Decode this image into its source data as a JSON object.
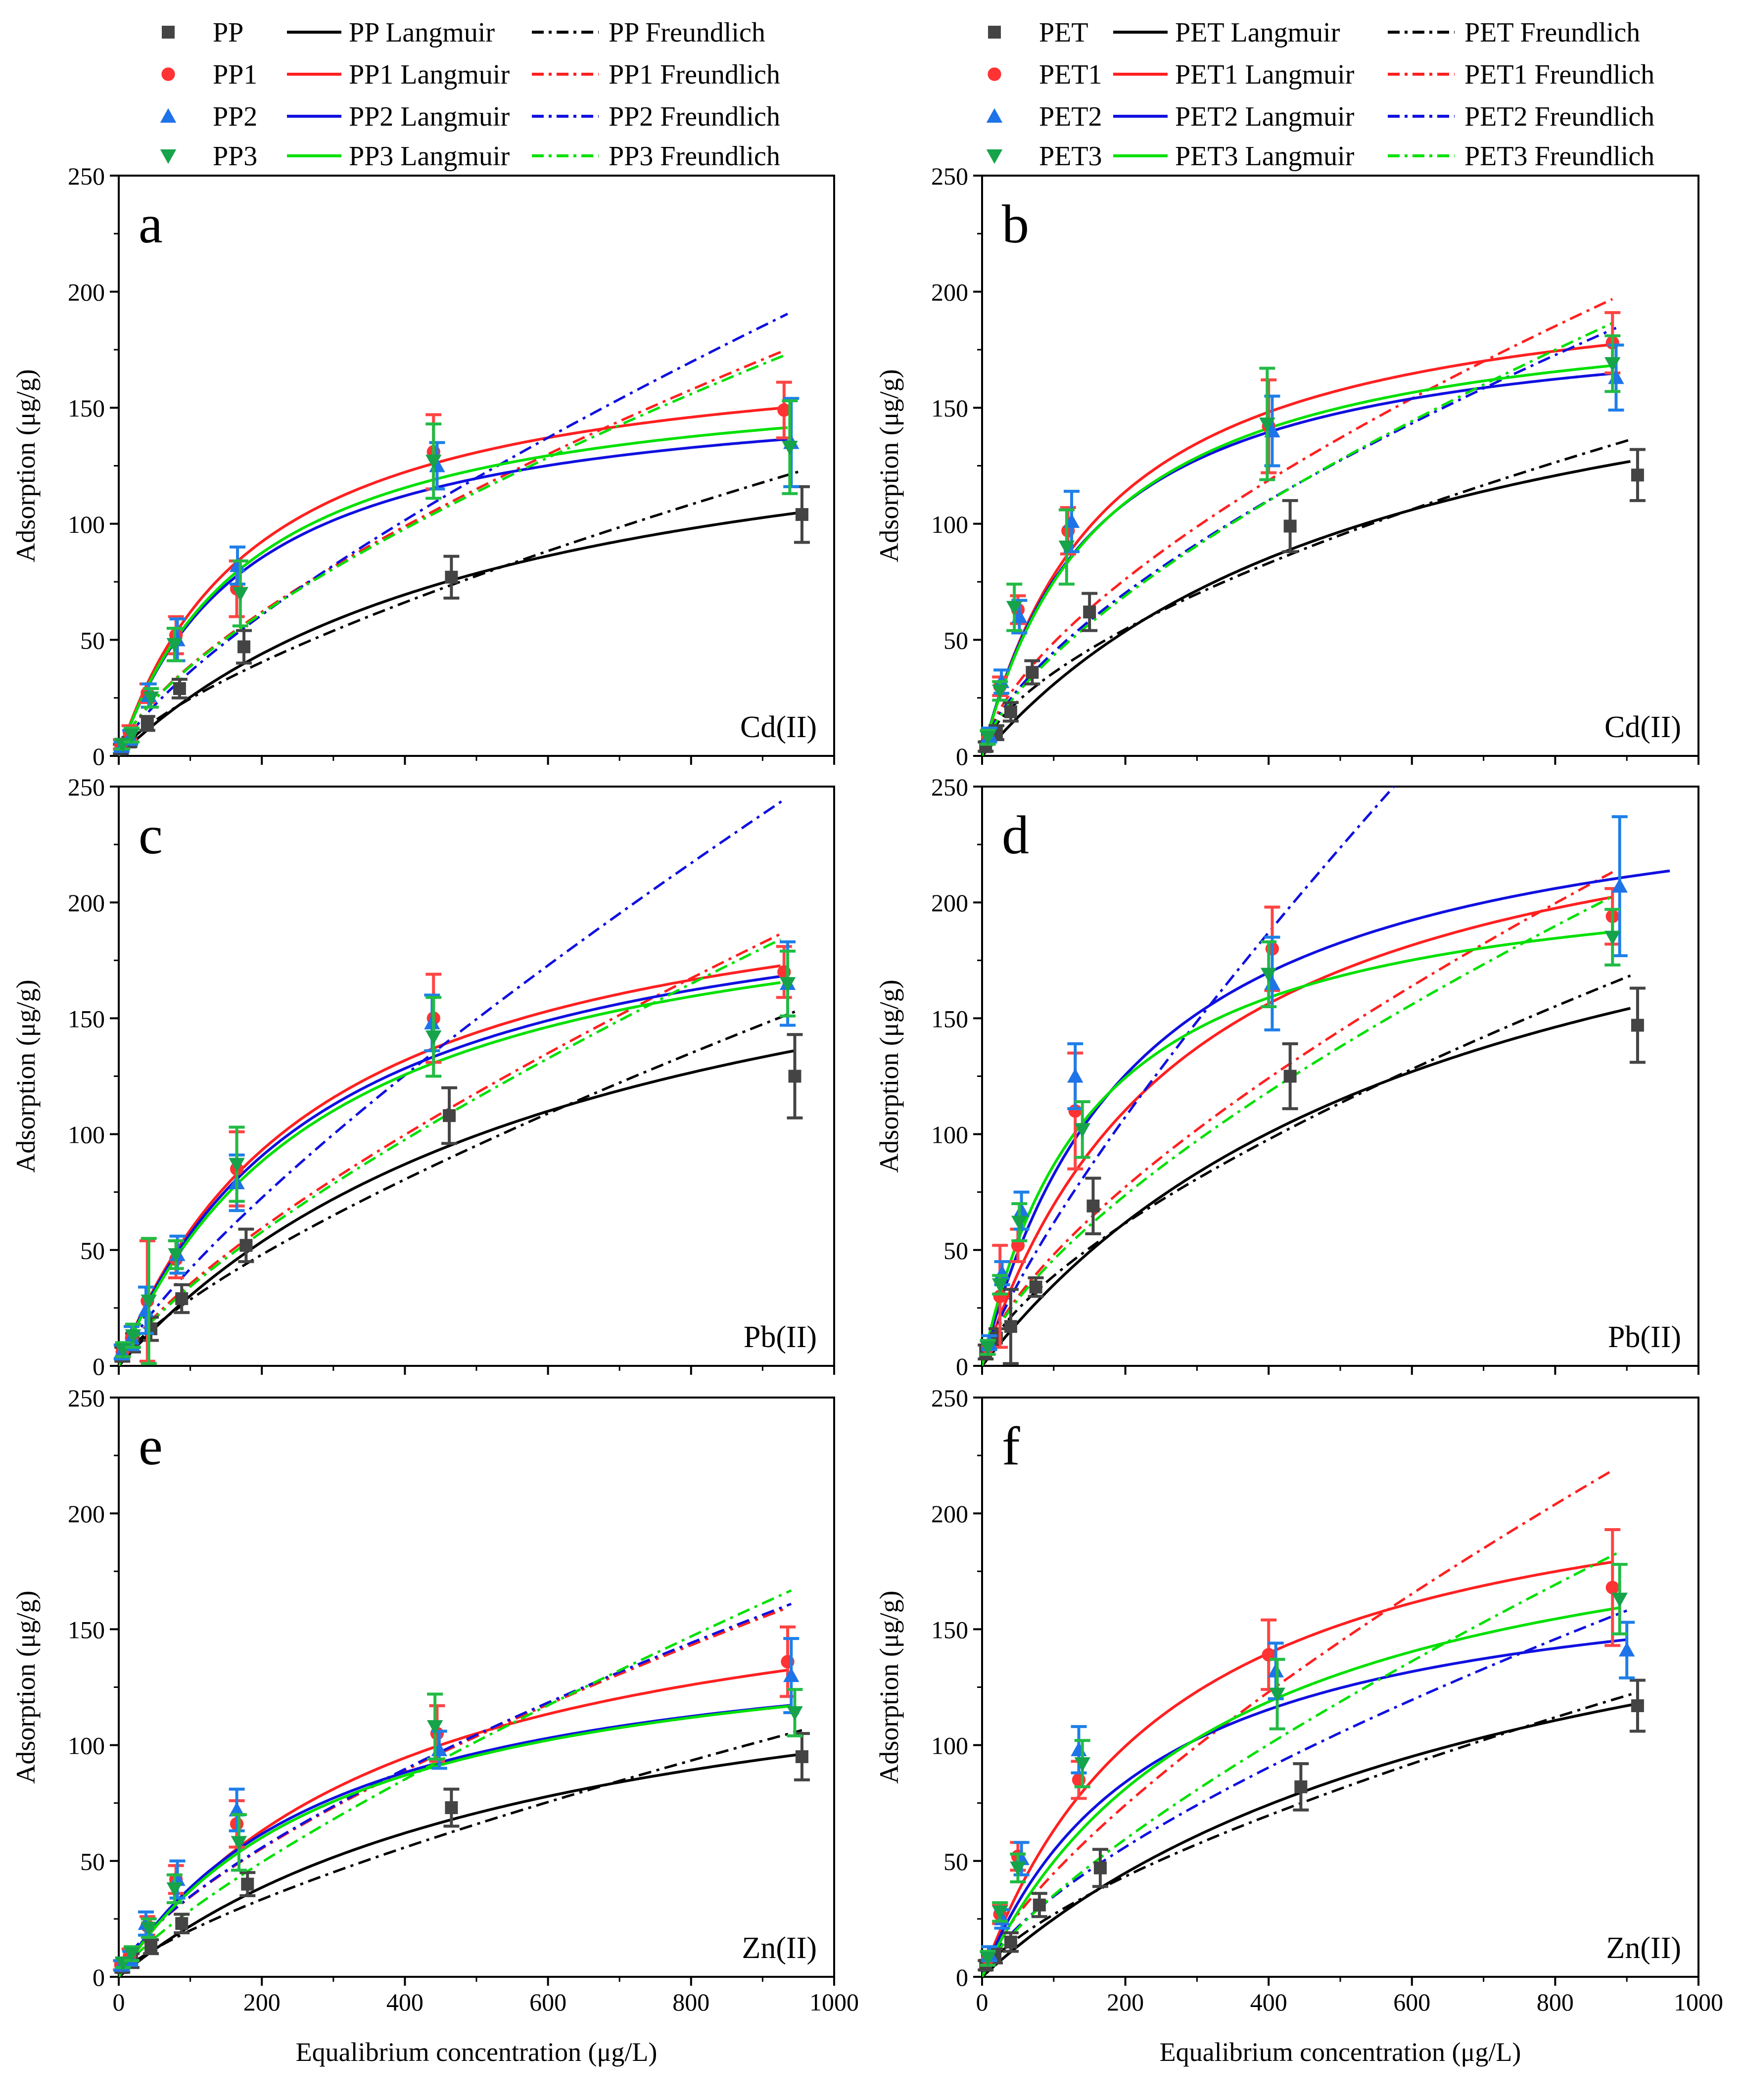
{
  "figure": {
    "x_axis_label": "Equalibrium concentration (μg/L)",
    "y_axis_label": "Adsorption (μg/g)"
  },
  "legends": {
    "pp": {
      "items": [
        {
          "marker": "square",
          "color": "#444444",
          "label": "PP",
          "lang_label": "PP Langmuir",
          "freund_label": "PP Freundlich"
        },
        {
          "marker": "circle",
          "color": "#ff3333",
          "label": "PP1",
          "lang_label": "PP1 Langmuir",
          "freund_label": "PP1 Freundlich"
        },
        {
          "marker": "triangle-up",
          "color": "#1e73e8",
          "label": "PP2",
          "lang_label": "PP2 Langmuir",
          "freund_label": "PP2 Freundlich"
        },
        {
          "marker": "triangle-down",
          "color": "#16a34a",
          "label": "PP3",
          "lang_label": "PP3 Langmuir",
          "freund_label": "PP3 Freundlich"
        }
      ]
    },
    "pet": {
      "items": [
        {
          "marker": "square",
          "color": "#444444",
          "label": "PET",
          "lang_label": "PET Langmuir",
          "freund_label": "PET Freundlich"
        },
        {
          "marker": "circle",
          "color": "#ff3333",
          "label": "PET1",
          "lang_label": "PET1 Langmuir",
          "freund_label": "PET1 Freundlich"
        },
        {
          "marker": "triangle-up",
          "color": "#1e73e8",
          "label": "PET2",
          "lang_label": "PET2 Langmuir",
          "freund_label": "PET2 Freundlich"
        },
        {
          "marker": "triangle-down",
          "color": "#16a34a",
          "label": "PET3",
          "lang_label": "PET3 Langmuir",
          "freund_label": "PET3 Freundlich"
        }
      ]
    }
  },
  "colors": {
    "base_marker": "#444444",
    "base_line": "#000000",
    "s1": "#ff2020",
    "s2": "#1010e0",
    "s3": "#00e000",
    "s1_marker": "#ff3333",
    "s2_marker": "#1e73e8",
    "s3_marker": "#16a34a",
    "s1_err": "#ff4444",
    "s2_err": "#1e7fe8",
    "s3_err": "#22bb44"
  },
  "chart_data": [
    {
      "type": "scatter",
      "panel": "a",
      "metal": "Cd(II)",
      "xlabel": "Equalibrium concentration (μg/L)",
      "ylabel": "Adsorption (μg/g)",
      "xlim": [
        0,
        1000
      ],
      "ylim": [
        0,
        250
      ],
      "xticks": [
        "0",
        "200",
        "400",
        "600",
        "800",
        "1000"
      ],
      "yticks": [
        "0",
        "50",
        "100",
        "150",
        "200",
        "250"
      ],
      "series": [
        {
          "name": "PP",
          "x": [
            3,
            15,
            40,
            85,
            175,
            465,
            955
          ],
          "y": [
            3,
            6,
            14,
            29,
            47,
            77,
            104
          ],
          "err": [
            2,
            2,
            3,
            4,
            7,
            9,
            12
          ],
          "lang_qmax": 166,
          "lang_kl": 0.0018,
          "freund_kf": 0.93,
          "freund_n": 1.405,
          "fit_xmax": 955
        },
        {
          "name": "PP1",
          "x": [
            3,
            15,
            40,
            80,
            165,
            440,
            930
          ],
          "y": [
            5,
            10,
            27,
            52,
            72,
            131,
            149
          ],
          "err": [
            2,
            3,
            4,
            8,
            12,
            16,
            12
          ],
          "lang_qmax": 181,
          "lang_kl": 0.0052,
          "freund_kf": 1.75,
          "freund_n": 1.485,
          "fit_xmax": 930
        },
        {
          "name": "PP2",
          "x": [
            4,
            16,
            42,
            82,
            166,
            445,
            940
          ],
          "y": [
            4,
            8,
            26,
            50,
            82,
            125,
            135
          ],
          "err": [
            2,
            3,
            5,
            9,
            8,
            10,
            19
          ],
          "lang_qmax": 163,
          "lang_kl": 0.0055,
          "freund_kf": 1.2,
          "freund_n": 1.35,
          "fit_xmax": 935
        },
        {
          "name": "PP3",
          "x": [
            5,
            18,
            45,
            78,
            170,
            440,
            938
          ],
          "y": [
            5,
            9,
            25,
            48,
            70,
            127,
            133
          ],
          "err": [
            2,
            3,
            4,
            7,
            14,
            16,
            20
          ],
          "lang_qmax": 170,
          "lang_kl": 0.0053,
          "freund_kf": 1.74,
          "freund_n": 1.487,
          "fit_xmax": 935
        }
      ]
    },
    {
      "type": "scatter",
      "panel": "b",
      "metal": "Cd(II)",
      "xlabel": "Equalibrium concentration (μg/L)",
      "ylabel": "Adsorption (μg/g)",
      "xlim": [
        0,
        1000
      ],
      "ylim": [
        0,
        250
      ],
      "xticks": [
        "0",
        "200",
        "400",
        "600",
        "800",
        "1000"
      ],
      "yticks": [
        "0",
        "50",
        "100",
        "150",
        "200",
        "250"
      ],
      "series": [
        {
          "name": "PET",
          "x": [
            5,
            20,
            40,
            70,
            150,
            430,
            915
          ],
          "y": [
            4,
            10,
            19,
            36,
            62,
            99,
            121
          ],
          "err": [
            2,
            3,
            4,
            5,
            8,
            11,
            11
          ],
          "lang_qmax": 207,
          "lang_kl": 0.00175,
          "freund_kf": 2.2,
          "freund_n": 1.65,
          "fit_xmax": 905
        },
        {
          "name": "PET1",
          "x": [
            8,
            25,
            50,
            120,
            400,
            880
          ],
          "y": [
            8,
            30,
            63,
            97,
            142,
            178
          ],
          "err": [
            3,
            4,
            6,
            10,
            20,
            13
          ],
          "lang_qmax": 212,
          "lang_kl": 0.0058,
          "freund_kf": 2.55,
          "freund_n": 1.56,
          "fit_xmax": 880
        },
        {
          "name": "PET2",
          "x": [
            10,
            27,
            52,
            125,
            405,
            885
          ],
          "y": [
            9,
            32,
            60,
            101,
            140,
            163
          ],
          "err": [
            3,
            5,
            7,
            13,
            15,
            14
          ],
          "lang_qmax": 194,
          "lang_kl": 0.0064,
          "freund_kf": 2.25,
          "freund_n": 1.54,
          "fit_xmax": 885
        },
        {
          "name": "PET3",
          "x": [
            8,
            25,
            45,
            118,
            398,
            880
          ],
          "y": [
            8,
            28,
            64,
            90,
            143,
            169
          ],
          "err": [
            3,
            4,
            10,
            16,
            24,
            12
          ],
          "lang_qmax": 200,
          "lang_kl": 0.006,
          "freund_kf": 1.97,
          "freund_n": 1.49,
          "fit_xmax": 880
        }
      ]
    },
    {
      "type": "scatter",
      "panel": "c",
      "metal": "Pb(II)",
      "xlabel": "Equalibrium concentration (μg/L)",
      "ylabel": "Adsorption (μg/g)",
      "xlim": [
        0,
        1000
      ],
      "ylim": [
        0,
        250
      ],
      "xticks": [
        "0",
        "200",
        "400",
        "600",
        "800",
        "1000"
      ],
      "yticks": [
        "0",
        "50",
        "100",
        "150",
        "200",
        "250"
      ],
      "series": [
        {
          "name": "PP",
          "x": [
            5,
            20,
            45,
            88,
            178,
            462,
            945
          ],
          "y": [
            5,
            10,
            16,
            29,
            52,
            108,
            125
          ],
          "err": [
            3,
            4,
            5,
            6,
            7,
            12,
            18
          ],
          "lang_qmax": 232,
          "lang_kl": 0.0015,
          "freund_kf": 0.92,
          "freund_n": 1.34,
          "fit_xmax": 945
        },
        {
          "name": "PP1",
          "x": [
            5,
            18,
            40,
            80,
            165,
            440,
            930
          ],
          "y": [
            6,
            12,
            28,
            46,
            85,
            150,
            170
          ],
          "err": [
            3,
            5,
            26,
            8,
            16,
            19,
            11
          ],
          "lang_qmax": 226,
          "lang_kl": 0.0035,
          "freund_kf": 1.14,
          "freund_n": 1.34,
          "fit_xmax": 925
        },
        {
          "name": "PP2",
          "x": [
            4,
            18,
            38,
            82,
            165,
            438,
            935
          ],
          "y": [
            6,
            12,
            24,
            48,
            79,
            148,
            165
          ],
          "err": [
            3,
            5,
            10,
            8,
            12,
            12,
            18
          ],
          "lang_qmax": 220,
          "lang_kl": 0.0035,
          "freund_kf": 1.1,
          "freund_n": 1.265,
          "fit_xmax": 930
        },
        {
          "name": "PP3",
          "x": [
            6,
            20,
            42,
            80,
            165,
            440,
            935
          ],
          "y": [
            7,
            13,
            28,
            48,
            87,
            142,
            165
          ],
          "err": [
            3,
            5,
            27,
            6,
            16,
            17,
            14
          ],
          "lang_qmax": 218,
          "lang_kl": 0.0034,
          "freund_kf": 1.05,
          "freund_n": 1.322,
          "fit_xmax": 925
        }
      ]
    },
    {
      "type": "scatter",
      "panel": "d",
      "metal": "Pb(II)",
      "xlabel": "Equalibrium concentration (μg/L)",
      "ylabel": "Adsorption (μg/g)",
      "xlim": [
        0,
        1000
      ],
      "ylim": [
        0,
        250
      ],
      "xticks": [
        "0",
        "200",
        "400",
        "600",
        "800",
        "1000"
      ],
      "yticks": [
        "0",
        "50",
        "100",
        "150",
        "200",
        "250"
      ],
      "series": [
        {
          "name": "PET",
          "x": [
            5,
            20,
            40,
            75,
            155,
            430,
            915
          ],
          "y": [
            6,
            12,
            17,
            34,
            69,
            125,
            147
          ],
          "err": [
            3,
            4,
            16,
            4,
            12,
            14,
            16
          ],
          "lang_qmax": 268,
          "lang_kl": 0.0015,
          "freund_kf": 1.8,
          "freund_n": 1.5,
          "fit_xmax": 905
        },
        {
          "name": "PET1",
          "x": [
            8,
            25,
            50,
            130,
            405,
            880
          ],
          "y": [
            8,
            30,
            52,
            110,
            180,
            194
          ],
          "err": [
            3,
            22,
            7,
            25,
            18,
            12
          ],
          "lang_qmax": 268,
          "lang_kl": 0.0035,
          "freund_kf": 2.05,
          "freund_n": 1.46,
          "fit_xmax": 880
        },
        {
          "name": "PET2",
          "x": [
            10,
            28,
            55,
            130,
            405,
            890
          ],
          "y": [
            10,
            40,
            67,
            125,
            165,
            207
          ],
          "err": [
            3,
            5,
            8,
            14,
            20,
            30
          ],
          "lang_qmax": 262,
          "lang_kl": 0.0046,
          "freund_kf": 1.55,
          "freund_n": 1.25,
          "fit_xmax": 960
        },
        {
          "name": "PET3",
          "x": [
            8,
            25,
            52,
            140,
            400,
            880
          ],
          "y": [
            8,
            35,
            62,
            102,
            169,
            185
          ],
          "err": [
            3,
            4,
            8,
            12,
            14,
            12
          ],
          "lang_qmax": 220,
          "lang_kl": 0.0065,
          "freund_kf": 1.98,
          "freund_n": 1.465,
          "fit_xmax": 880
        }
      ]
    },
    {
      "type": "scatter",
      "panel": "e",
      "metal": "Zn(II)",
      "xlabel": "Equalibrium concentration (μg/L)",
      "ylabel": "Adsorption (μg/g)",
      "xlim": [
        0,
        1000
      ],
      "ylim": [
        0,
        250
      ],
      "xticks": [
        "0",
        "200",
        "400",
        "600",
        "800",
        "1000"
      ],
      "yticks": [
        "0",
        "50",
        "100",
        "150",
        "200",
        "250"
      ],
      "series": [
        {
          "name": "PP",
          "x": [
            5,
            18,
            45,
            88,
            180,
            465,
            955
          ],
          "y": [
            4,
            7,
            13,
            23,
            40,
            73,
            95
          ],
          "err": [
            2,
            3,
            3,
            4,
            5,
            8,
            10
          ],
          "lang_qmax": 159,
          "lang_kl": 0.0016,
          "freund_kf": 0.66,
          "freund_n": 1.35,
          "fit_xmax": 955
        },
        {
          "name": "PP1",
          "x": [
            3,
            15,
            40,
            80,
            165,
            445,
            935
          ],
          "y": [
            5,
            9,
            22,
            42,
            66,
            105,
            136
          ],
          "err": [
            2,
            3,
            4,
            6,
            10,
            12,
            15
          ],
          "lang_qmax": 189,
          "lang_kl": 0.0025,
          "freund_kf": 1.47,
          "freund_n": 1.46,
          "fit_xmax": 935
        },
        {
          "name": "PP2",
          "x": [
            4,
            16,
            38,
            82,
            165,
            448,
            940
          ],
          "y": [
            5,
            8,
            23,
            42,
            72,
            98,
            130
          ],
          "err": [
            2,
            3,
            5,
            8,
            9,
            8,
            16
          ],
          "lang_qmax": 155,
          "lang_kl": 0.0033,
          "freund_kf": 1.48,
          "freund_n": 1.46,
          "fit_xmax": 940
        },
        {
          "name": "PP3",
          "x": [
            6,
            18,
            42,
            78,
            168,
            442,
            945
          ],
          "y": [
            6,
            10,
            21,
            38,
            58,
            108,
            114
          ],
          "err": [
            2,
            3,
            4,
            6,
            12,
            14,
            10
          ],
          "lang_qmax": 157,
          "lang_kl": 0.0031,
          "freund_kf": 0.77,
          "freund_n": 1.273,
          "fit_xmax": 940
        }
      ]
    },
    {
      "type": "scatter",
      "panel": "f",
      "metal": "Zn(II)",
      "xlabel": "Equalibrium concentration (μg/L)",
      "ylabel": "Adsorption (μg/g)",
      "xlim": [
        0,
        1000
      ],
      "ylim": [
        0,
        250
      ],
      "xticks": [
        "0",
        "200",
        "400",
        "600",
        "800",
        "1000"
      ],
      "yticks": [
        "0",
        "50",
        "100",
        "150",
        "200",
        "250"
      ],
      "series": [
        {
          "name": "PET",
          "x": [
            5,
            18,
            40,
            80,
            165,
            445,
            915
          ],
          "y": [
            5,
            9,
            15,
            31,
            47,
            82,
            117
          ],
          "err": [
            2,
            3,
            4,
            5,
            8,
            10,
            11
          ],
          "lang_qmax": 217,
          "lang_kl": 0.0013,
          "freund_kf": 1.15,
          "freund_n": 1.46,
          "fit_xmax": 915
        },
        {
          "name": "PET1",
          "x": [
            8,
            25,
            50,
            135,
            400,
            880
          ],
          "y": [
            8,
            27,
            52,
            85,
            139,
            168
          ],
          "err": [
            3,
            4,
            6,
            8,
            15,
            25
          ],
          "lang_qmax": 234,
          "lang_kl": 0.0037,
          "freund_kf": 1.55,
          "freund_n": 1.37,
          "fit_xmax": 880
        },
        {
          "name": "PET2",
          "x": [
            10,
            28,
            55,
            135,
            410,
            900
          ],
          "y": [
            10,
            25,
            51,
            98,
            132,
            141
          ],
          "err": [
            3,
            4,
            7,
            10,
            12,
            12
          ],
          "lang_qmax": 184,
          "lang_kl": 0.0042,
          "freund_kf": 1.45,
          "freund_n": 1.45,
          "fit_xmax": 900
        },
        {
          "name": "PET3",
          "x": [
            8,
            25,
            50,
            140,
            412,
            890
          ],
          "y": [
            8,
            28,
            47,
            92,
            122,
            163
          ],
          "err": [
            3,
            4,
            6,
            10,
            15,
            15
          ],
          "lang_qmax": 221,
          "lang_kl": 0.0029,
          "freund_kf": 1.09,
          "freund_n": 1.325,
          "fit_xmax": 890
        }
      ]
    }
  ]
}
